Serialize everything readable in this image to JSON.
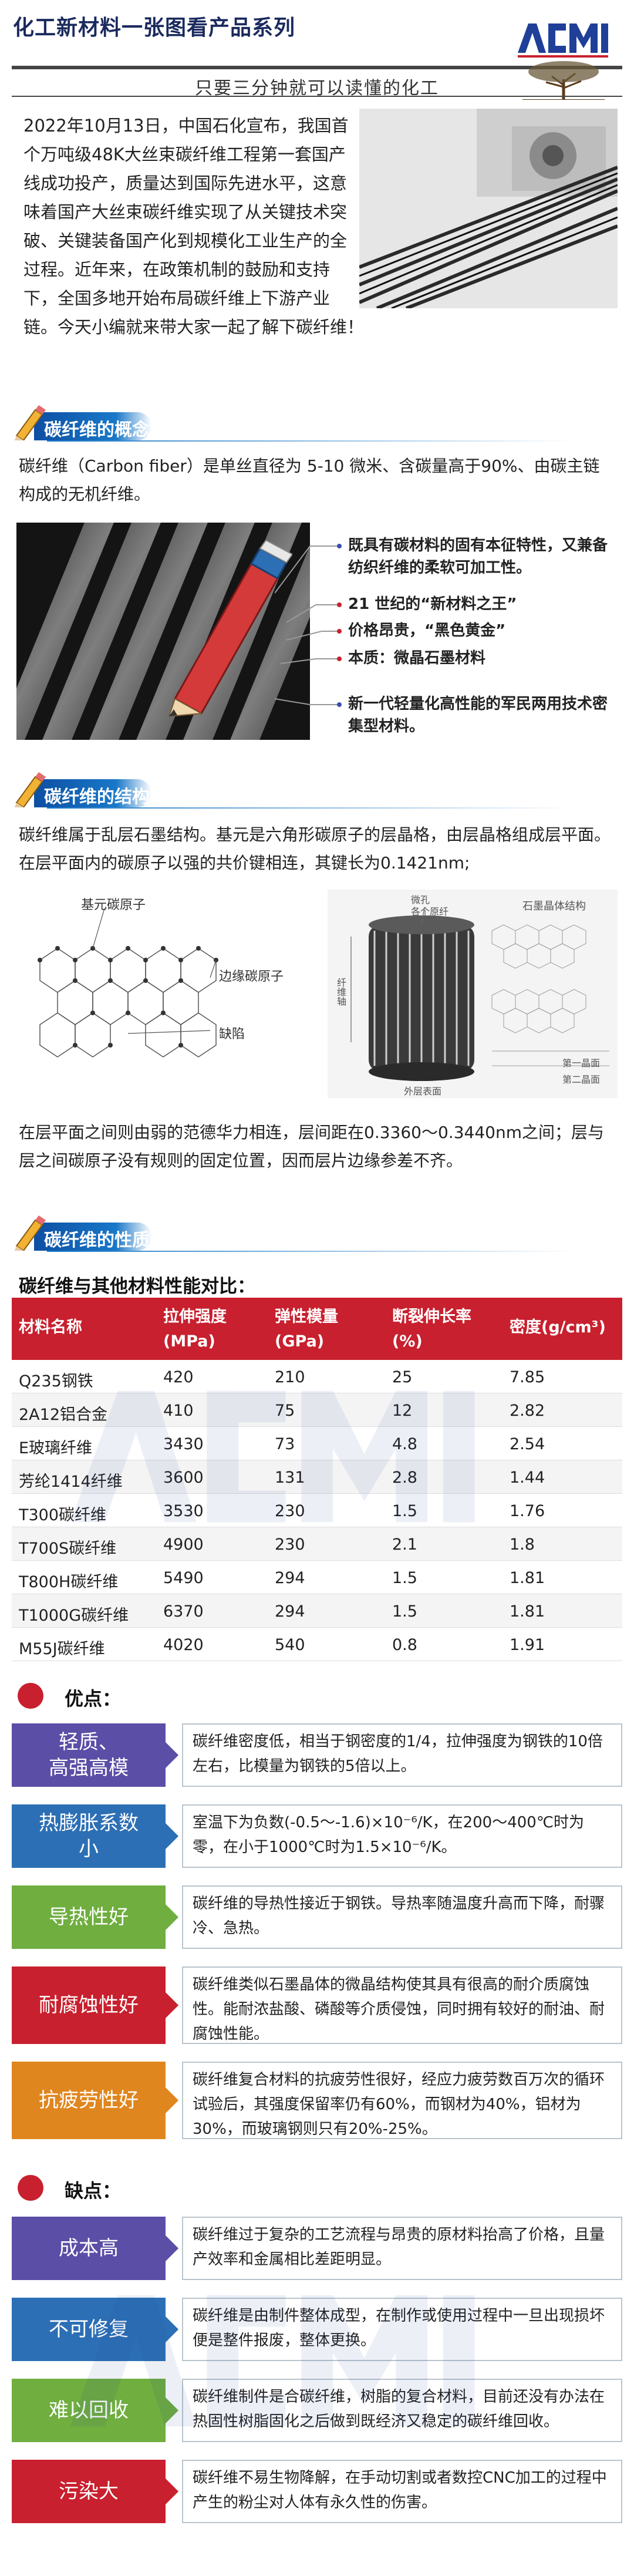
{
  "header": {
    "title": "化工新材料一张图看产品系列",
    "slogan": "只要三分钟就可以读懂的化工",
    "logo_text": "ACMI"
  },
  "intro": {
    "text": "2022年10月13日，中国石化宣布，我国首个万吨级48K大丝束碳纤维工程第一套国产线成功投产，质量达到国际先进水平，这意味着国产大丝束碳纤维实现了从关键技术突破、关键装备国产化到规模化工业生产的全过程。近年来，在政策机制的鼓励和支持下，全国多地开始布局碳纤维上下游产业链。今天小编就来带大家一起了解下碳纤维！"
  },
  "sections": {
    "concept": {
      "title": "碳纤维的概念",
      "text": "碳纤维（Carbon fiber）是单丝直径为 5-10 微米、含碳量高于90%、由碳主链构成的无机纤维。",
      "bullets": [
        {
          "text": "既具有碳材料的固有本征特性，又兼备纺织纤维的柔软可加工性。",
          "color": "#3a4fb0"
        },
        {
          "text": "21 世纪的“新材料之王”",
          "color": "#c8202e"
        },
        {
          "text": "价格昂贵，“黑色黄金”",
          "color": "#c8202e"
        },
        {
          "text": "本质：微晶石墨材料",
          "color": "#c8202e"
        },
        {
          "text": "新一代轻量化高性能的军民两用技术密集型材料。",
          "color": "#3a4fb0"
        }
      ]
    },
    "structure": {
      "title": "碳纤维的结构",
      "text1": "碳纤维属于乱层石墨结构。基元是六角形碳原子的层晶格，由层晶格组成层平面。在层平面内的碳原子以强的共价键相连，其键长为0.1421nm;",
      "text2": "在层平面之间则由弱的范德华力相连，层间距在0.3360～0.3440nm之间；层与层之间碳原子没有规则的固定位置，因而层片边缘参差不齐。",
      "diagram_labels": {
        "left_top": "基元碳原子",
        "left_edge": "边缘碳原子",
        "left_defect": "缺陷",
        "right_title": "石墨晶体结构",
        "right_micro": "微孔",
        "right_layers": "各个原纤",
        "right_axis": "纤维轴",
        "right_surface": "外层表面",
        "right_first": "第一晶面",
        "right_second": "第二晶面"
      }
    },
    "properties": {
      "title": "碳纤维的性质",
      "table_title": "碳纤维与其他材料性能对比：",
      "columns": [
        "材料名称",
        "拉伸强度 (MPa)",
        "弹性模量 (GPa)",
        "断裂伸长率 (%)",
        "密度(g/cm³)"
      ],
      "column_lines": [
        [
          "材料名称"
        ],
        [
          "拉伸强度",
          "(MPa)"
        ],
        [
          "弹性模量",
          "(GPa)"
        ],
        [
          "断裂伸长率",
          "(%)"
        ],
        [
          "密度(g/cm³)"
        ]
      ],
      "rows": [
        [
          "Q235钢铁",
          "420",
          "210",
          "25",
          "7.85"
        ],
        [
          "2A12铝合金",
          "410",
          "75",
          "12",
          "2.82"
        ],
        [
          "E玻璃纤维",
          "3430",
          "73",
          "4.8",
          "2.54"
        ],
        [
          "芳纶1414纤维",
          "3600",
          "131",
          "2.8",
          "1.44"
        ],
        [
          "T300碳纤维",
          "3530",
          "230",
          "1.5",
          "1.76"
        ],
        [
          "T700S碳纤维",
          "4900",
          "230",
          "2.1",
          "1.8"
        ],
        [
          "T800H碳纤维",
          "5490",
          "294",
          "1.5",
          "1.81"
        ],
        [
          "T1000G碳纤维",
          "6370",
          "294",
          "1.5",
          "1.81"
        ],
        [
          "M55J碳纤维",
          "4020",
          "540",
          "0.8",
          "1.91"
        ]
      ]
    }
  },
  "pros": {
    "title": "优点：",
    "color": "#6a5bb0",
    "items": [
      {
        "tag": "轻质、高强高模",
        "tag_lines": [
          "轻质、",
          "高强高模"
        ],
        "color": "#5b4ea6",
        "text": "碳纤维密度低，相当于钢密度的1/4，拉伸强度为钢铁的10倍左右，比模量为钢铁的5倍以上。"
      },
      {
        "tag": "热膨胀系数小",
        "tag_lines": [
          "热膨胀系数",
          "小"
        ],
        "color": "#2c6fb5",
        "text": "室温下为负数(-0.5～-1.6)×10⁻⁶/K，在200～400℃时为零，在小于1000℃时为1.5×10⁻⁶/K。"
      },
      {
        "tag": "导热性好",
        "tag_lines": [
          "导热性好"
        ],
        "color": "#6fae3f",
        "text": "碳纤维的导热性接近于钢铁。导热率随温度升高而下降，耐骤冷、急热。"
      },
      {
        "tag": "耐腐蚀性好",
        "tag_lines": [
          "耐腐蚀性好"
        ],
        "color": "#c8202e",
        "text": "碳纤维类似石墨晶体的微晶结构使其具有很高的耐介质腐蚀性。能耐浓盐酸、磷酸等介质侵蚀，同时拥有较好的耐油、耐腐蚀性能。"
      },
      {
        "tag": "抗疲劳性好",
        "tag_lines": [
          "抗疲劳性好"
        ],
        "color": "#e0861e",
        "text": "碳纤维复合材料的抗疲劳性很好，经应力疲劳数百万次的循环试验后，其强度保留率仍有60%，而钢材为40%，铝材为30%，而玻璃钢则只有20%-25%。"
      }
    ]
  },
  "cons": {
    "title": "缺点：",
    "items": [
      {
        "tag": "成本高",
        "tag_lines": [
          "成本高"
        ],
        "color": "#5b4ea6",
        "text": "碳纤维过于复杂的工艺流程与昂贵的原材料抬高了价格，且量产效率和金属相比差距明显。"
      },
      {
        "tag": "不可修复",
        "tag_lines": [
          "不可修复"
        ],
        "color": "#2c6fb5",
        "text": "碳纤维是由制件整体成型，在制作或使用过程中一旦出现损坏便是整件报废，整体更换。"
      },
      {
        "tag": "难以回收",
        "tag_lines": [
          "难以回收"
        ],
        "color": "#6fae3f",
        "text": "碳纤维制件是合碳纤维，树脂的复合材料，目前还没有办法在热固性树脂固化之后做到既经济又稳定的碳纤维回收。"
      },
      {
        "tag": "污染大",
        "tag_lines": [
          "污染大"
        ],
        "color": "#c8202e",
        "text": "碳纤维不易生物降解，在手动切割或者数控CNC加工的过程中产生的粉尘对人体有永久性的伤害。"
      }
    ]
  }
}
